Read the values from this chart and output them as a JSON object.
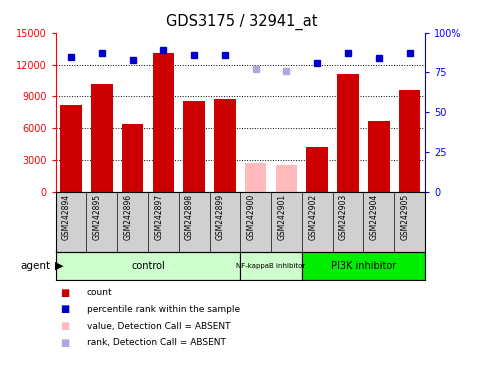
{
  "title": "GDS3175 / 32941_at",
  "samples": [
    "GSM242894",
    "GSM242895",
    "GSM242896",
    "GSM242897",
    "GSM242898",
    "GSM242899",
    "GSM242900",
    "GSM242901",
    "GSM242902",
    "GSM242903",
    "GSM242904",
    "GSM242905"
  ],
  "bar_values": [
    8200,
    10200,
    6400,
    13100,
    8600,
    8800,
    2700,
    2500,
    4200,
    11100,
    6700,
    9600
  ],
  "bar_absent": [
    false,
    false,
    false,
    false,
    false,
    false,
    true,
    true,
    false,
    false,
    false,
    false
  ],
  "rank_values": [
    85,
    87,
    83,
    89,
    86,
    86,
    null,
    null,
    81,
    87,
    84,
    87
  ],
  "rank_absent_values": [
    null,
    null,
    null,
    null,
    null,
    null,
    77,
    76,
    null,
    null,
    null,
    null
  ],
  "bar_color": "#cc0000",
  "bar_absent_color": "#ffbbbb",
  "rank_color": "#0000cc",
  "rank_absent_color": "#aaaadd",
  "ylim_left": [
    0,
    15000
  ],
  "ylim_right": [
    0,
    100
  ],
  "yticks_left": [
    0,
    3000,
    6000,
    9000,
    12000,
    15000
  ],
  "yticks_right": [
    0,
    25,
    50,
    75,
    100
  ],
  "ytick_labels_right": [
    "0",
    "25",
    "50",
    "75",
    "100%"
  ],
  "group_spans": [
    {
      "start": 0,
      "end": 6,
      "color": "#ccffcc",
      "label": "control",
      "fontsize": 8
    },
    {
      "start": 6,
      "end": 8,
      "color": "#ccffcc",
      "label": "NF-kappaB inhibitor",
      "fontsize": 6
    },
    {
      "start": 8,
      "end": 12,
      "color": "#00ee00",
      "label": "PI3K inhibitor",
      "fontsize": 8
    }
  ],
  "legend_items": [
    {
      "label": "count",
      "color": "#cc0000"
    },
    {
      "label": "percentile rank within the sample",
      "color": "#0000cc"
    },
    {
      "label": "value, Detection Call = ABSENT",
      "color": "#ffbbbb"
    },
    {
      "label": "rank, Detection Call = ABSENT",
      "color": "#aaaadd"
    }
  ],
  "background_color": "#ffffff",
  "sample_bg_color": "#d0d0d0"
}
